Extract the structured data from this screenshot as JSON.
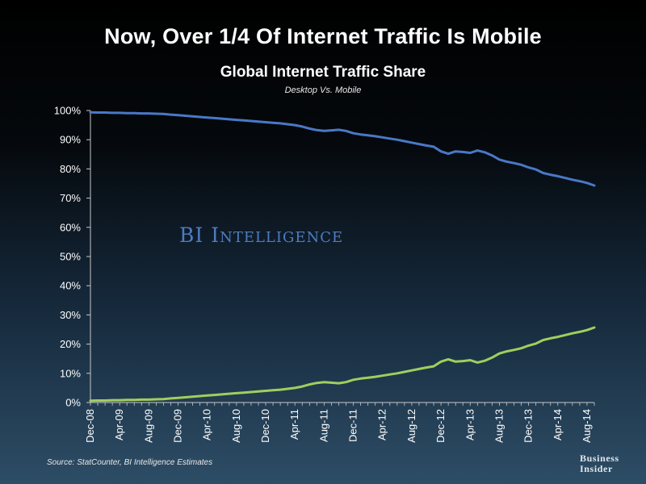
{
  "header": {
    "title": "Now, Over 1/4 Of Internet Traffic Is Mobile"
  },
  "watermark": "BI Intelligence",
  "footer": {
    "source": "Source: StatCounter, BI Intelligence Estimates",
    "brand_line1": "Business",
    "brand_line2": "Insider"
  },
  "colors": {
    "desktop": "#4a78c7",
    "mobile": "#9fcf5e",
    "axis": "#c8c8c8",
    "text": "#ffffff"
  },
  "chart_data": {
    "type": "line",
    "title": "Global Internet Traffic Share",
    "subtitle": "Desktop Vs. Mobile",
    "xlabel": "",
    "ylabel": "",
    "ylim": [
      0,
      100
    ],
    "yticks": [
      "0%",
      "10%",
      "20%",
      "30%",
      "40%",
      "50%",
      "60%",
      "70%",
      "80%",
      "90%",
      "100%"
    ],
    "x_tick_labels": [
      "Dec-08",
      "Apr-09",
      "Aug-09",
      "Dec-09",
      "Apr-10",
      "Aug-10",
      "Dec-10",
      "Apr-11",
      "Aug-11",
      "Dec-11",
      "Apr-12",
      "Aug-12",
      "Dec-12",
      "Apr-13",
      "Aug-13",
      "Dec-13",
      "Apr-14",
      "Aug-14"
    ],
    "x_tick_index": [
      0,
      4,
      8,
      12,
      16,
      20,
      24,
      28,
      32,
      36,
      40,
      44,
      48,
      52,
      56,
      60,
      64,
      68
    ],
    "n_points": 70,
    "series": [
      {
        "name": "Desktop",
        "values": [
          99.4,
          99.3,
          99.3,
          99.2,
          99.2,
          99.1,
          99.1,
          99.0,
          99.0,
          98.9,
          98.8,
          98.6,
          98.4,
          98.2,
          98.0,
          97.8,
          97.6,
          97.4,
          97.2,
          97.0,
          96.8,
          96.6,
          96.4,
          96.2,
          96.0,
          95.8,
          95.6,
          95.3,
          95.0,
          94.5,
          93.8,
          93.3,
          93.0,
          93.2,
          93.4,
          93.0,
          92.2,
          91.8,
          91.5,
          91.2,
          90.8,
          90.4,
          90.0,
          89.5,
          89.0,
          88.5,
          88.0,
          87.6,
          86.0,
          85.2,
          86.0,
          85.8,
          85.5,
          86.3,
          85.7,
          84.6,
          83.2,
          82.5,
          82.0,
          81.4,
          80.5,
          79.8,
          78.6,
          78.0,
          77.5,
          76.9,
          76.3,
          75.8,
          75.2,
          74.3
        ]
      },
      {
        "name": "Mobile",
        "values": [
          0.6,
          0.7,
          0.7,
          0.8,
          0.8,
          0.9,
          0.9,
          1.0,
          1.0,
          1.1,
          1.2,
          1.4,
          1.6,
          1.8,
          2.0,
          2.2,
          2.4,
          2.6,
          2.8,
          3.0,
          3.2,
          3.4,
          3.6,
          3.8,
          4.0,
          4.2,
          4.4,
          4.7,
          5.0,
          5.5,
          6.2,
          6.7,
          7.0,
          6.8,
          6.6,
          7.0,
          7.8,
          8.2,
          8.5,
          8.8,
          9.2,
          9.6,
          10.0,
          10.5,
          11.0,
          11.5,
          12.0,
          12.4,
          14.0,
          14.8,
          14.0,
          14.2,
          14.5,
          13.7,
          14.3,
          15.4,
          16.8,
          17.5,
          18.0,
          18.6,
          19.5,
          20.2,
          21.4,
          22.0,
          22.5,
          23.1,
          23.7,
          24.2,
          24.8,
          25.7
        ]
      }
    ]
  }
}
